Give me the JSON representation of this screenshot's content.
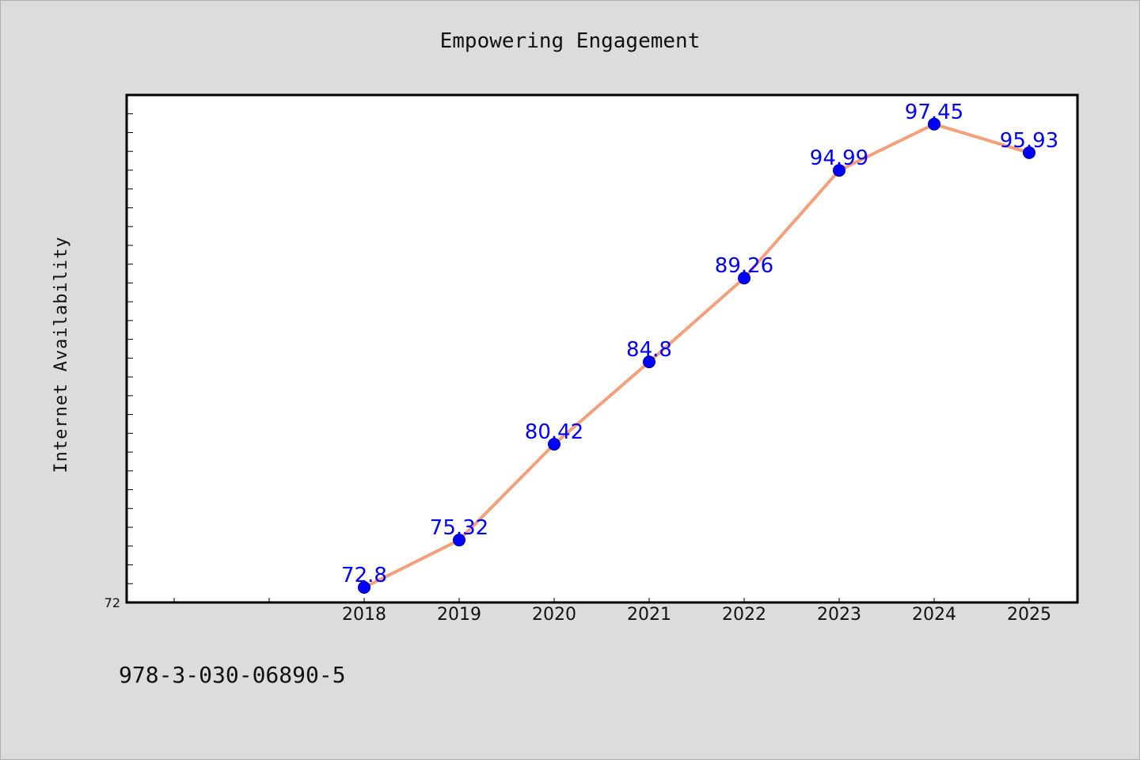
{
  "chart_data": {
    "type": "line",
    "title": "Empowering Engagement",
    "xlabel": "",
    "ylabel": "Internet Availability",
    "categories": [
      "2018",
      "2019",
      "2020",
      "2021",
      "2022",
      "2023",
      "2024",
      "2025"
    ],
    "series": [
      {
        "values": [
          72.8,
          75.32,
          80.42,
          84.8,
          89.26,
          94.99,
          97.45,
          95.93
        ],
        "data_labels": [
          "72.8",
          "75.32",
          "80.42",
          "84.8",
          "89.26",
          "94.99",
          "97.45",
          "95.93"
        ],
        "line_color": "#f4a07a",
        "marker_color": "#0000ff"
      }
    ],
    "y_tick_labels": [
      "72"
    ],
    "ylim": [
      72,
      99
    ],
    "grid": false,
    "legend": "none"
  },
  "footer": {
    "text": "978-3-030-06890-5"
  },
  "colors": {
    "background": "#dcdcdc",
    "plot_background": "#ffffff",
    "label_color": "#0000ff"
  }
}
